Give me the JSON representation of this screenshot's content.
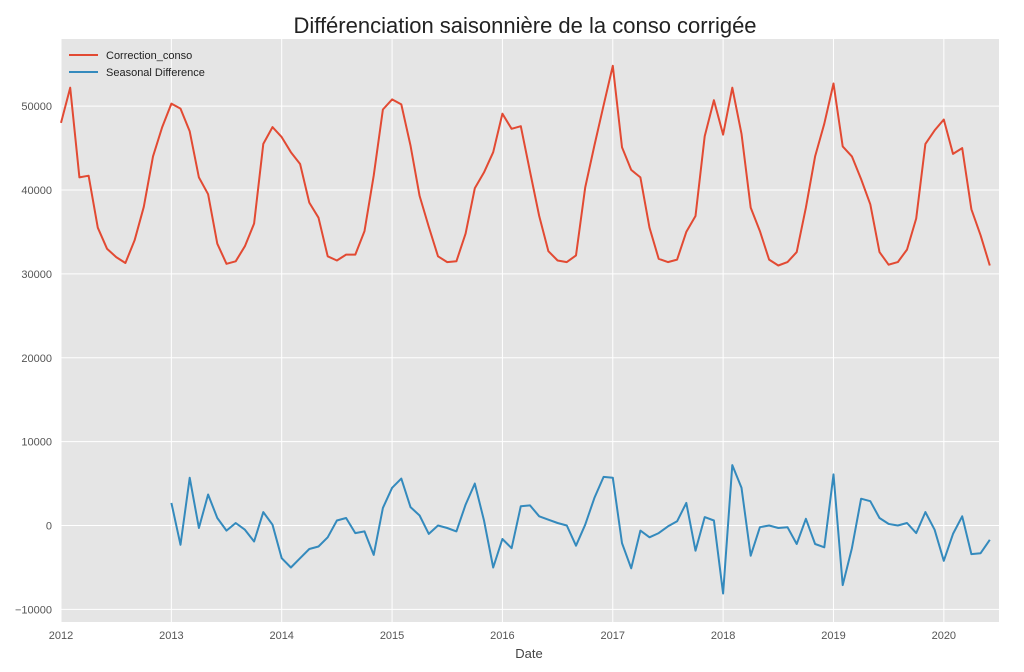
{
  "chart_data": {
    "type": "line",
    "title": "Différenciation saisonnière de la conso corrigée",
    "xlabel": "Date",
    "ylabel": "",
    "x_start": "2012-01",
    "x_ticks": [
      "2012",
      "2013",
      "2014",
      "2015",
      "2016",
      "2017",
      "2018",
      "2019",
      "2020"
    ],
    "y_ticks": [
      "−10000",
      "0",
      "10000",
      "20000",
      "30000",
      "40000",
      "50000"
    ],
    "xlim": [
      "2012-01",
      "2020-07"
    ],
    "ylim": [
      -11500,
      58000
    ],
    "grid": true,
    "legend_placement": "top-left",
    "series": [
      {
        "name": "Correction_conso",
        "color": "#E24A33",
        "values": [
          48000,
          52200,
          41500,
          41700,
          35500,
          33000,
          32000,
          31300,
          34000,
          38000,
          44000,
          47500,
          50300,
          49700,
          47000,
          41500,
          39500,
          33600,
          31200,
          31500,
          33300,
          36000,
          45500,
          47500,
          46300,
          44500,
          43100,
          38500,
          36700,
          32100,
          31600,
          32300,
          32300,
          35100,
          41700,
          49600,
          50800,
          50200,
          45300,
          39300,
          35600,
          32100,
          31400,
          31500,
          34800,
          40200,
          42100,
          44500,
          49100,
          47300,
          47600,
          42200,
          36900,
          32700,
          31600,
          31400,
          32200,
          40300,
          45300,
          50100,
          54800,
          45100,
          42400,
          41500,
          35500,
          31800,
          31400,
          31700,
          35000,
          36900,
          46400,
          50700,
          46600,
          52200,
          46700,
          37900,
          35100,
          31700,
          31000,
          31400,
          32600,
          37900,
          44000,
          47900,
          52700,
          45200,
          44000,
          41300,
          38300,
          32600,
          31100,
          31400,
          32900,
          36600,
          45500,
          47100,
          48400,
          44300,
          45000,
          37700,
          34600,
          31000
        ]
      },
      {
        "name": "Seasonal Difference",
        "color": "#348ABD",
        "values": [
          null,
          null,
          null,
          null,
          null,
          null,
          null,
          null,
          null,
          null,
          null,
          null,
          2700,
          -2300,
          5700,
          -300,
          3700,
          900,
          -600,
          300,
          -500,
          -1900,
          1600,
          100,
          -3900,
          -5000,
          -3900,
          -2800,
          -2500,
          -1400,
          600,
          900,
          -900,
          -700,
          -3500,
          2100,
          4500,
          5600,
          2200,
          1200,
          -1000,
          0,
          -300,
          -700,
          2500,
          5000,
          600,
          -5000,
          -1600,
          -2700,
          2300,
          2400,
          1100,
          700,
          300,
          0,
          -2400,
          100,
          3300,
          5800,
          5700,
          -2100,
          -5100,
          -600,
          -1400,
          -900,
          -100,
          500,
          2700,
          -3000,
          1000,
          600,
          -8100,
          7200,
          4500,
          -3600,
          -200,
          0,
          -300,
          -200,
          -2200,
          800,
          -2200,
          -2600,
          6100,
          -7100,
          -2700,
          3200,
          2900,
          900,
          200,
          0,
          300,
          -900,
          1600,
          -500,
          -4200,
          -1000,
          1100,
          -3400,
          -3300,
          -1700
        ]
      }
    ]
  }
}
